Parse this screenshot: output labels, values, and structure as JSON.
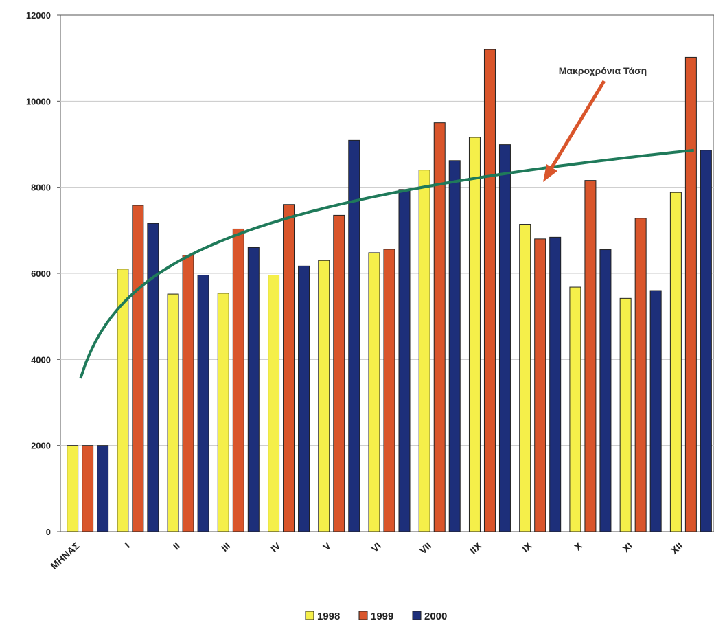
{
  "chart_data": {
    "type": "bar",
    "categories": [
      "ΜΗΝΑΣ",
      "I",
      "II",
      "III",
      "IV",
      "V",
      "VI",
      "VII",
      "IIX",
      "IX",
      "X",
      "XI",
      "XII"
    ],
    "series": [
      {
        "name": "1998",
        "color": "#f5ef4a",
        "values": [
          2000,
          6100,
          5520,
          5540,
          5960,
          6300,
          6480,
          8400,
          9160,
          7140,
          5680,
          5420,
          7880
        ]
      },
      {
        "name": "1999",
        "color": "#d9552b",
        "values": [
          2000,
          7580,
          6420,
          7030,
          7600,
          7350,
          6560,
          9500,
          11200,
          6800,
          8160,
          7280,
          11020
        ]
      },
      {
        "name": "2000",
        "color": "#1d2f7a",
        "values": [
          2000,
          7160,
          5960,
          6600,
          6170,
          9090,
          7950,
          8620,
          8990,
          6840,
          6550,
          5600,
          8860
        ]
      }
    ],
    "trend": {
      "label": "Μακροχρόνια Τάση",
      "color": "#1f7a5a",
      "x_start": 0.4,
      "x_end": 12.6,
      "y_start": 3560,
      "y_end": 8860
    },
    "ylim": [
      0,
      12000
    ],
    "yticks": [
      0,
      2000,
      4000,
      6000,
      8000,
      10000,
      12000
    ],
    "grid": true,
    "legend_position": "bottom-center",
    "title": "",
    "xlabel": "",
    "ylabel": ""
  }
}
